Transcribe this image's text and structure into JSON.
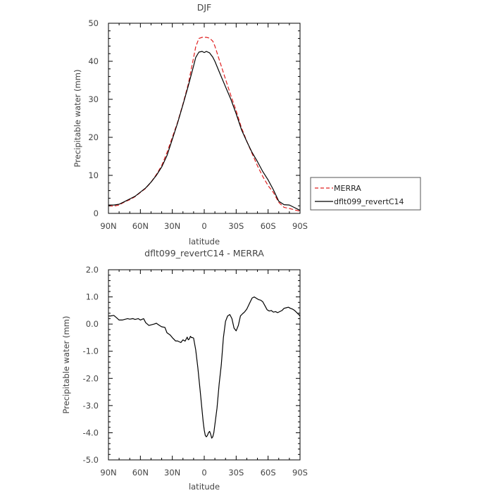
{
  "chart_data": [
    {
      "type": "line",
      "title": "DJF",
      "xlabel": "latitude",
      "ylabel": "Precipitable water (mm)",
      "xlim": [
        90,
        -90
      ],
      "ylim": [
        0,
        50
      ],
      "xticks": [
        90,
        60,
        30,
        0,
        -30,
        -60,
        -90
      ],
      "xtick_labels": [
        "90N",
        "60N",
        "30N",
        "0",
        "30S",
        "60S",
        "90S"
      ],
      "yticks": [
        0,
        10,
        20,
        30,
        40,
        50
      ],
      "ytick_labels": [
        "0",
        "10",
        "20",
        "30",
        "40",
        "50"
      ],
      "grid": false,
      "legend": "right",
      "series": [
        {
          "name": "MERRA",
          "color": "#e02020",
          "dash": "dashed",
          "x": [
            90,
            85,
            80,
            75,
            70,
            65,
            60,
            55,
            50,
            45,
            40,
            35,
            30,
            25,
            20,
            15,
            10,
            8,
            5,
            2,
            0,
            -2,
            -5,
            -8,
            -10,
            -15,
            -20,
            -25,
            -30,
            -35,
            -40,
            -45,
            -50,
            -55,
            -60,
            -65,
            -70,
            -75,
            -80,
            -85,
            -90
          ],
          "values": [
            2.0,
            1.9,
            2.2,
            3.0,
            3.6,
            4.4,
            5.5,
            6.6,
            8.2,
            10.2,
            12.6,
            16.0,
            20.0,
            24.0,
            28.8,
            34.0,
            41.0,
            43.8,
            46.0,
            46.3,
            46.3,
            46.3,
            46.1,
            45.3,
            44.0,
            39.6,
            35.3,
            31.0,
            27.0,
            22.5,
            19.0,
            15.7,
            12.5,
            9.7,
            7.3,
            5.5,
            2.9,
            1.6,
            1.3,
            0.9,
            0.6
          ]
        },
        {
          "name": "dflt099_revertC14",
          "color": "#000000",
          "dash": "solid",
          "x": [
            90,
            85,
            80,
            75,
            70,
            65,
            60,
            55,
            50,
            45,
            40,
            35,
            30,
            25,
            20,
            15,
            10,
            8,
            5,
            2,
            0,
            -2,
            -5,
            -8,
            -10,
            -15,
            -20,
            -25,
            -30,
            -35,
            -40,
            -45,
            -50,
            -55,
            -60,
            -65,
            -70,
            -75,
            -80,
            -85,
            -90
          ],
          "values": [
            2.2,
            2.2,
            2.4,
            3.1,
            3.8,
            4.5,
            5.6,
            6.7,
            8.2,
            10.0,
            12.2,
            15.2,
            19.5,
            23.8,
            28.6,
            33.5,
            38.8,
            41.0,
            42.4,
            42.6,
            42.3,
            42.6,
            42.2,
            41.1,
            40.0,
            36.6,
            33.3,
            30.0,
            26.2,
            22.0,
            18.9,
            16.0,
            13.6,
            11.0,
            8.8,
            6.2,
            3.2,
            2.3,
            2.2,
            1.5,
            0.8
          ]
        }
      ]
    },
    {
      "type": "line",
      "title": "dflt099_revertC14 - MERRA",
      "xlabel": "latitude",
      "ylabel": "Precipitable water (mm)",
      "xlim": [
        90,
        -90
      ],
      "ylim": [
        -5,
        2
      ],
      "xticks": [
        90,
        60,
        30,
        0,
        -30,
        -60,
        -90
      ],
      "xtick_labels": [
        "90N",
        "60N",
        "30N",
        "0",
        "30S",
        "60S",
        "90S"
      ],
      "yticks": [
        -5,
        -4,
        -3,
        -2,
        -1,
        0,
        1,
        2
      ],
      "ytick_labels": [
        "-5.0",
        "-4.0",
        "-3.0",
        "-2.0",
        "-1.0",
        "0.0",
        "1.0",
        "2.0"
      ],
      "grid": false,
      "series": [
        {
          "color": "#000000",
          "dash": "solid",
          "x": [
            90,
            88,
            85,
            82,
            80,
            77,
            75,
            72,
            70,
            67,
            65,
            62,
            60,
            57,
            55,
            52,
            50,
            47,
            45,
            42,
            40,
            37,
            35,
            32,
            30,
            27,
            25,
            22,
            20,
            18,
            16,
            15,
            14,
            13,
            12,
            11,
            10,
            8,
            6,
            4,
            3,
            2,
            1,
            0,
            -1,
            -2,
            -3,
            -4,
            -5,
            -6,
            -7,
            -8,
            -9,
            -10,
            -12,
            -14,
            -16,
            -18,
            -20,
            -22,
            -24,
            -26,
            -28,
            -30,
            -32,
            -34,
            -36,
            -38,
            -40,
            -43,
            -45,
            -47,
            -49,
            -51,
            -53,
            -55,
            -57,
            -59,
            -61,
            -63,
            -65,
            -67,
            -69,
            -71,
            -73,
            -75,
            -77,
            -79,
            -81,
            -83,
            -85,
            -87,
            -90
          ],
          "values": [
            0.3,
            0.3,
            0.32,
            0.22,
            0.15,
            0.15,
            0.17,
            0.2,
            0.18,
            0.2,
            0.17,
            0.2,
            0.15,
            0.2,
            0.05,
            -0.05,
            -0.03,
            0.0,
            0.03,
            -0.05,
            -0.1,
            -0.12,
            -0.32,
            -0.4,
            -0.5,
            -0.62,
            -0.62,
            -0.68,
            -0.58,
            -0.63,
            -0.48,
            -0.58,
            -0.55,
            -0.45,
            -0.5,
            -0.5,
            -0.52,
            -0.95,
            -1.6,
            -2.4,
            -2.8,
            -3.2,
            -3.6,
            -3.9,
            -4.1,
            -4.15,
            -4.1,
            -4.0,
            -3.95,
            -4.05,
            -4.2,
            -4.15,
            -4.0,
            -3.7,
            -3.1,
            -2.2,
            -1.5,
            -0.5,
            0.1,
            0.3,
            0.35,
            0.2,
            -0.15,
            -0.25,
            -0.05,
            0.3,
            0.38,
            0.45,
            0.55,
            0.8,
            0.96,
            1.0,
            0.95,
            0.9,
            0.88,
            0.82,
            0.68,
            0.53,
            0.48,
            0.5,
            0.44,
            0.46,
            0.42,
            0.46,
            0.5,
            0.58,
            0.6,
            0.62,
            0.58,
            0.55,
            0.5,
            0.42,
            0.3
          ]
        }
      ]
    }
  ]
}
